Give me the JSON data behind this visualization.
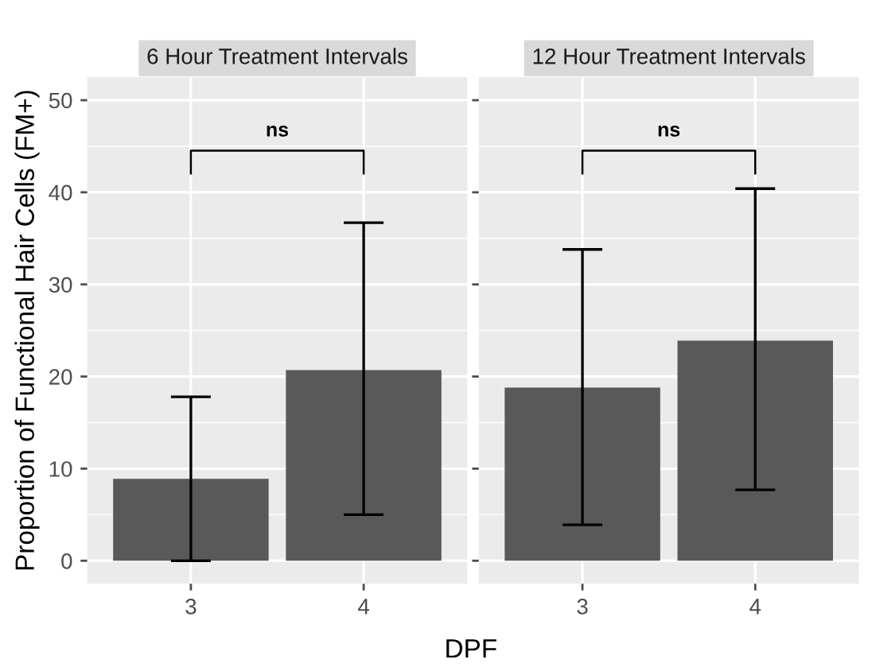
{
  "chart_data": [
    {
      "type": "bar",
      "title": "6 Hour Treatment Intervals",
      "xlabel": "DPF",
      "ylabel": "Proportion of Functional Hair Cells (FM+)",
      "categories": [
        "3",
        "4"
      ],
      "values": [
        8.9,
        20.7
      ],
      "errors": [
        [
          0,
          17.8
        ],
        [
          5.0,
          36.7
        ]
      ],
      "color": "#595959",
      "ylim": [
        -2.5,
        52.5
      ],
      "yticks": [
        0,
        10,
        20,
        30,
        40,
        50
      ],
      "grid": true,
      "annotations": [
        "ns"
      ]
    },
    {
      "type": "bar",
      "title": "12 Hour Treatment Intervals",
      "categories": [
        "3",
        "4"
      ],
      "values": [
        18.8,
        23.9
      ],
      "errors": [
        [
          3.9,
          33.8
        ],
        [
          7.7,
          40.4
        ]
      ],
      "color": "#595959",
      "ylim": [
        -2.5,
        52.5
      ],
      "yticks": [
        0,
        10,
        20,
        30,
        40,
        50
      ],
      "grid": true,
      "tick_labels": "x",
      "annotations": [
        "ns"
      ]
    }
  ]
}
